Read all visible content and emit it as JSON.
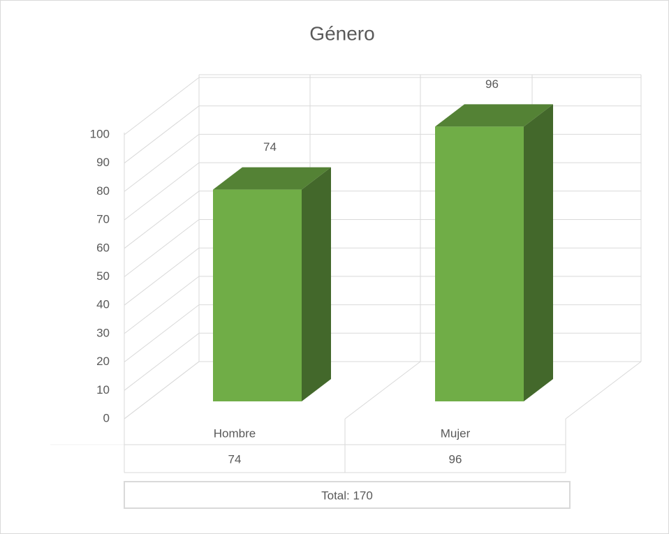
{
  "chart_data": {
    "type": "bar3d",
    "title": "Género",
    "categories": [
      "Hombre",
      "Mujer"
    ],
    "values": [
      74,
      96
    ],
    "color": "#70ad47",
    "top_color": "#548235",
    "side_color": "#43682b",
    "ylim": [
      0,
      100
    ],
    "yticks": [
      0,
      10,
      20,
      30,
      40,
      50,
      60,
      70,
      80,
      90,
      100
    ],
    "grid": true,
    "data_table": true,
    "total_label": "Total: 170"
  }
}
